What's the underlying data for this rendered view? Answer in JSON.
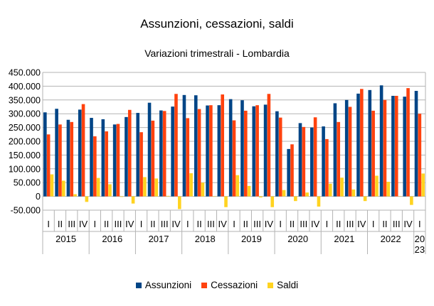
{
  "chart_data": {
    "type": "bar",
    "title": "Assunzioni, cessazioni, saldi",
    "subtitle": "Variazioni trimestrali - Lombardia",
    "xlabel": "",
    "ylabel": "",
    "ylim": [
      -50000,
      450000
    ],
    "yticks": [
      "450.000",
      "400.000",
      "350.000",
      "300.000",
      "250.000",
      "200.000",
      "150.000",
      "100.000",
      "50.000",
      "0",
      "-50.000"
    ],
    "ytick_values": [
      450000,
      400000,
      350000,
      300000,
      250000,
      200000,
      150000,
      100000,
      50000,
      0,
      -50000
    ],
    "grid": true,
    "legend_position": "bottom",
    "quarters": [
      "I",
      "II",
      "III",
      "IV",
      "I",
      "II",
      "III",
      "IV",
      "I",
      "II",
      "III",
      "IV",
      "I",
      "II",
      "III",
      "IV",
      "I",
      "II",
      "III",
      "IV",
      "I",
      "II",
      "III",
      "IV",
      "I",
      "II",
      "III",
      "IV",
      "I",
      "II",
      "III",
      "IV",
      "I"
    ],
    "years": [
      {
        "label": "2015",
        "start": 0,
        "count": 4
      },
      {
        "label": "2016",
        "start": 4,
        "count": 4
      },
      {
        "label": "2017",
        "start": 8,
        "count": 4
      },
      {
        "label": "2018",
        "start": 12,
        "count": 4
      },
      {
        "label": "2019",
        "start": 16,
        "count": 4
      },
      {
        "label": "2020",
        "start": 20,
        "count": 4
      },
      {
        "label": "2021",
        "start": 24,
        "count": 4
      },
      {
        "label": "2022",
        "start": 28,
        "count": 4
      },
      {
        "label": "2023",
        "start": 32,
        "count": 1,
        "lines": [
          "20",
          "23"
        ]
      }
    ],
    "series": [
      {
        "name": "Assunzioni",
        "color": "#004586",
        "values": [
          305000,
          318000,
          278000,
          315000,
          285000,
          280000,
          261000,
          288000,
          303000,
          340000,
          312000,
          326000,
          368000,
          367000,
          330000,
          331000,
          353000,
          349000,
          327000,
          333000,
          309000,
          172000,
          266000,
          250000,
          254000,
          338000,
          350000,
          373000,
          386000,
          403000,
          365000,
          362000,
          383000
        ]
      },
      {
        "name": "Cessazioni",
        "color": "#ff420e",
        "values": [
          225000,
          261000,
          270000,
          335000,
          218000,
          236000,
          263000,
          314000,
          233000,
          275000,
          310000,
          372000,
          284000,
          317000,
          331000,
          370000,
          276000,
          311000,
          331000,
          372000,
          286000,
          189000,
          252000,
          287000,
          208000,
          270000,
          325000,
          390000,
          311000,
          350000,
          365000,
          393000,
          300000
        ]
      },
      {
        "name": "Saldi",
        "color": "#ffd320",
        "values": [
          80000,
          57000,
          8000,
          -20000,
          67000,
          44000,
          -2000,
          -26000,
          70000,
          65000,
          2000,
          -46000,
          84000,
          50000,
          -1000,
          -39000,
          77000,
          38000,
          -4000,
          -39000,
          23000,
          -17000,
          14000,
          -37000,
          46000,
          68000,
          25000,
          -17000,
          75000,
          53000,
          0,
          -31000,
          83000
        ]
      }
    ]
  }
}
